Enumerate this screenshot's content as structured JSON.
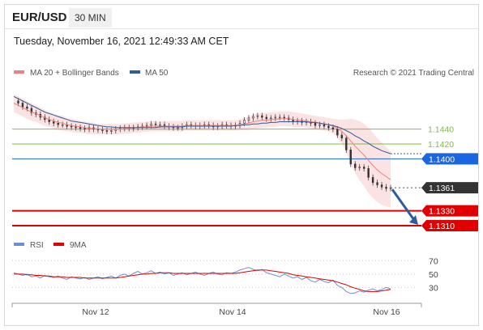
{
  "header": {
    "pair": "EUR/USD",
    "timeframe": "30 MIN",
    "datetime": "Tuesday, November 16, 2021 12:49:33 AM CET"
  },
  "legend": {
    "price_items": [
      {
        "label": "MA 20 + Bollinger Bands",
        "color": "#f08080"
      },
      {
        "label": "MA 50",
        "color": "#2e5c9e"
      }
    ],
    "copyright": "Research © 2021 Trading Central",
    "rsi_items": [
      {
        "label": "RSI",
        "color": "#6b8fd6"
      },
      {
        "label": "9MA",
        "color": "#e00000"
      }
    ]
  },
  "chart_data": [
    {
      "type": "candlestick",
      "title": "EUR/USD",
      "timeframe": "30 MIN",
      "x_ticks": [
        "Nov 12",
        "Nov 14",
        "Nov 16"
      ],
      "ylim": [
        1.1298,
        1.1505
      ],
      "levels": [
        {
          "value": 1.144,
          "label": "1.1440",
          "role": "resistance",
          "color": "#7bc043"
        },
        {
          "value": 1.142,
          "label": "1.1420",
          "role": "resistance",
          "color": "#7bc043"
        },
        {
          "value": 1.14,
          "label": "1.1400",
          "role": "pivot",
          "color": "#1a66e0"
        },
        {
          "value": 1.1361,
          "label": "1.1361",
          "role": "last",
          "color": "#333333"
        },
        {
          "value": 1.133,
          "label": "1.1330",
          "role": "support",
          "color": "#e00000"
        },
        {
          "value": 1.131,
          "label": "1.1310",
          "role": "support",
          "color": "#e00000"
        }
      ],
      "close_path": [
        1.1478,
        1.1475,
        1.147,
        1.1468,
        1.1462,
        1.146,
        1.1456,
        1.1453,
        1.145,
        1.1448,
        1.1446,
        1.1446,
        1.1444,
        1.1443,
        1.1442,
        1.1441,
        1.144,
        1.1442,
        1.144,
        1.1439,
        1.1438,
        1.1437,
        1.1438,
        1.144,
        1.1441,
        1.1442,
        1.1441,
        1.1442,
        1.1443,
        1.1444,
        1.1445,
        1.1447,
        1.1446,
        1.1446,
        1.1444,
        1.1443,
        1.1442,
        1.1442,
        1.1444,
        1.1446,
        1.1445,
        1.1444,
        1.1445,
        1.1446,
        1.1445,
        1.1443,
        1.1444,
        1.1446,
        1.1445,
        1.1444,
        1.1445,
        1.1448,
        1.1452,
        1.1455,
        1.1457,
        1.1458,
        1.1456,
        1.1454,
        1.1455,
        1.1456,
        1.1456,
        1.1455,
        1.1453,
        1.145,
        1.1451,
        1.1449,
        1.145,
        1.1448,
        1.1445,
        1.1446,
        1.1444,
        1.1442,
        1.144,
        1.1432,
        1.1428,
        1.1412,
        1.1393,
        1.1388,
        1.1389,
        1.1387,
        1.1375,
        1.1368,
        1.1365,
        1.1362,
        1.136,
        1.1361
      ],
      "ma20_path": [
        1.1475,
        1.1472,
        1.1469,
        1.1466,
        1.1463,
        1.1461,
        1.1458,
        1.1455,
        1.1453,
        1.1451,
        1.1449,
        1.1448,
        1.1446,
        1.1445,
        1.1444,
        1.1443,
        1.1442,
        1.1441,
        1.1441,
        1.144,
        1.144,
        1.144,
        1.144,
        1.144,
        1.144,
        1.1441,
        1.1441,
        1.1442,
        1.1442,
        1.1443,
        1.1443,
        1.1444,
        1.1444,
        1.1444,
        1.1444,
        1.1444,
        1.1444,
        1.1444,
        1.1444,
        1.1445,
        1.1445,
        1.1445,
        1.1445,
        1.1445,
        1.1445,
        1.1445,
        1.1445,
        1.1445,
        1.1445,
        1.1445,
        1.1445,
        1.1446,
        1.1447,
        1.1448,
        1.145,
        1.1451,
        1.1452,
        1.1452,
        1.1453,
        1.1453,
        1.1454,
        1.1454,
        1.1454,
        1.1453,
        1.1452,
        1.1452,
        1.1451,
        1.145,
        1.1449,
        1.1448,
        1.1447,
        1.1446,
        1.1444,
        1.1441,
        1.1437,
        1.1431,
        1.1424,
        1.1417,
        1.1411,
        1.1405,
        1.1398,
        1.1391,
        1.1385,
        1.138,
        1.1376,
        1.1372
      ],
      "ma50_path": [
        1.1484,
        1.1481,
        1.1478,
        1.1475,
        1.1472,
        1.1469,
        1.1466,
        1.1463,
        1.1461,
        1.1459,
        1.1457,
        1.1455,
        1.1453,
        1.1451,
        1.145,
        1.1449,
        1.1448,
        1.1447,
        1.1446,
        1.1445,
        1.1444,
        1.1443,
        1.1443,
        1.1442,
        1.1442,
        1.1442,
        1.1442,
        1.1442,
        1.1442,
        1.1442,
        1.1442,
        1.1442,
        1.1442,
        1.1443,
        1.1443,
        1.1443,
        1.1443,
        1.1443,
        1.1443,
        1.1444,
        1.1444,
        1.1444,
        1.1444,
        1.1444,
        1.1444,
        1.1444,
        1.1444,
        1.1444,
        1.1444,
        1.1444,
        1.1445,
        1.1445,
        1.1446,
        1.1446,
        1.1447,
        1.1447,
        1.1448,
        1.1448,
        1.1449,
        1.1449,
        1.145,
        1.145,
        1.145,
        1.145,
        1.145,
        1.145,
        1.145,
        1.1449,
        1.1449,
        1.1448,
        1.1447,
        1.1446,
        1.1445,
        1.1443,
        1.1441,
        1.1438,
        1.1435,
        1.1431,
        1.1428,
        1.1424,
        1.1421,
        1.1417,
        1.1414,
        1.1411,
        1.1409,
        1.1407
      ],
      "bb_width_path": [
        0.0012,
        0.0012,
        0.0012,
        0.0012,
        0.0012,
        0.0011,
        0.0011,
        0.0011,
        0.001,
        0.001,
        0.001,
        0.001,
        0.0009,
        0.0009,
        0.0009,
        0.0008,
        0.0008,
        0.0008,
        0.0008,
        0.0007,
        0.0007,
        0.0007,
        0.0007,
        0.0007,
        0.0007,
        0.0007,
        0.0007,
        0.0007,
        0.0007,
        0.0007,
        0.0007,
        0.0007,
        0.0007,
        0.0007,
        0.0007,
        0.0007,
        0.0007,
        0.0007,
        0.0007,
        0.0007,
        0.0007,
        0.0007,
        0.0007,
        0.0007,
        0.0007,
        0.0007,
        0.0007,
        0.0007,
        0.0007,
        0.0007,
        0.0007,
        0.0007,
        0.0008,
        0.0009,
        0.001,
        0.001,
        0.001,
        0.001,
        0.001,
        0.001,
        0.001,
        0.001,
        0.001,
        0.001,
        0.001,
        0.0009,
        0.0009,
        0.0009,
        0.0009,
        0.0009,
        0.0009,
        0.0009,
        0.001,
        0.0012,
        0.0016,
        0.0022,
        0.003,
        0.0036,
        0.004,
        0.0042,
        0.0044,
        0.0044,
        0.0043,
        0.0042,
        0.004,
        0.0038
      ],
      "forecast": {
        "from": 1.1361,
        "to": 1.131,
        "direction": "down",
        "color": "#2e5c9e"
      }
    },
    {
      "type": "line",
      "title": "RSI",
      "ylim": [
        10,
        80
      ],
      "y_ticks": [
        70,
        50,
        30
      ],
      "series": [
        {
          "name": "RSI",
          "color": "#6b8fd6",
          "values": [
            52,
            50,
            48,
            50,
            46,
            47,
            44,
            48,
            46,
            45,
            47,
            44,
            42,
            46,
            44,
            43,
            45,
            42,
            44,
            46,
            43,
            45,
            47,
            44,
            48,
            50,
            47,
            51,
            54,
            50,
            52,
            55,
            51,
            53,
            50,
            52,
            48,
            50,
            52,
            49,
            51,
            53,
            50,
            48,
            51,
            53,
            50,
            49,
            52,
            51,
            53,
            56,
            58,
            60,
            57,
            55,
            57,
            52,
            50,
            48,
            46,
            50,
            47,
            44,
            46,
            42,
            45,
            40,
            38,
            42,
            39,
            37,
            41,
            33,
            30,
            24,
            21,
            22,
            25,
            23,
            26,
            28,
            25,
            27,
            30,
            28
          ]
        },
        {
          "name": "9MA",
          "color": "#e00000",
          "values": [
            50,
            50,
            50,
            49,
            49,
            48,
            48,
            47,
            47,
            46,
            46,
            46,
            45,
            45,
            45,
            45,
            44,
            44,
            44,
            44,
            44,
            44,
            44,
            44,
            45,
            46,
            47,
            48,
            49,
            50,
            50,
            51,
            51,
            52,
            52,
            52,
            51,
            51,
            51,
            51,
            51,
            51,
            51,
            51,
            51,
            51,
            51,
            51,
            51,
            51,
            51,
            52,
            53,
            54,
            55,
            56,
            56,
            56,
            55,
            54,
            53,
            52,
            51,
            49,
            48,
            47,
            46,
            45,
            44,
            43,
            42,
            41,
            40,
            38,
            36,
            34,
            31,
            29,
            27,
            25,
            24,
            24,
            24,
            25,
            26,
            27
          ]
        }
      ]
    }
  ]
}
